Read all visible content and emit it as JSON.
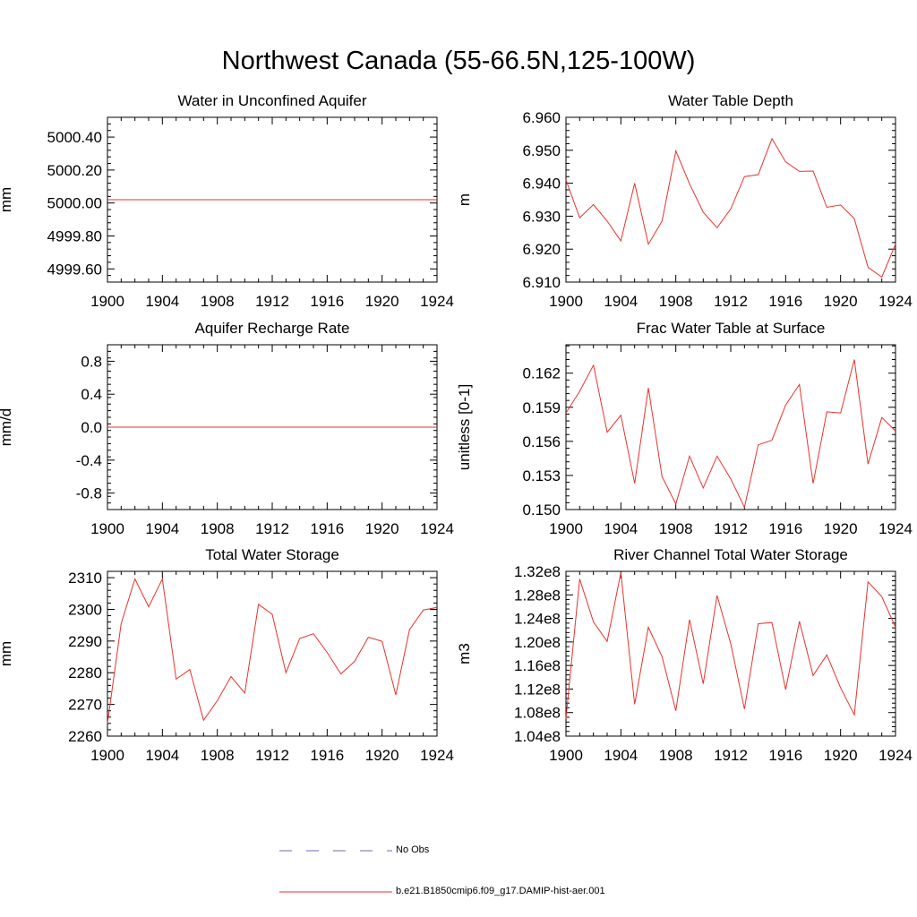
{
  "figure": {
    "title": "Northwest Canada (55-66.5N,125-100W)"
  },
  "legend": {
    "items": [
      {
        "label": "No Obs",
        "color": "#6b6bb8",
        "style": "dashed"
      },
      {
        "label": "b.e21.B1850cmip6.f09_g17.DAMIP-hist-aer.001",
        "color": "#e8322c",
        "style": "solid"
      }
    ]
  },
  "colors": {
    "series": "#e8322c",
    "axis": "#000000"
  },
  "chart_data": [
    {
      "type": "line",
      "title": "Water in Unconfined Aquifer",
      "ylabel": "mm",
      "xlim": [
        1900,
        1924
      ],
      "ylim": [
        4999.52,
        5000.52
      ],
      "xticks": [
        1900,
        1904,
        1908,
        1912,
        1916,
        1920,
        1924
      ],
      "xtick_labels": [
        "1900",
        "1904",
        "1908",
        "1912",
        "1916",
        "1920",
        "1924"
      ],
      "yticks": [
        4999.6,
        4999.8,
        5000.0,
        5000.2,
        5000.4
      ],
      "ytick_labels": [
        "4999.60",
        "4999.80",
        "5000.00",
        "5000.20",
        "5000.40"
      ],
      "x": [
        1900,
        1901,
        1902,
        1903,
        1904,
        1905,
        1906,
        1907,
        1908,
        1909,
        1910,
        1911,
        1912,
        1913,
        1914,
        1915,
        1916,
        1917,
        1918,
        1919,
        1920,
        1921,
        1922,
        1923,
        1924
      ],
      "series": [
        {
          "values": [
            5000.02,
            5000.02,
            5000.02,
            5000.02,
            5000.02,
            5000.02,
            5000.02,
            5000.02,
            5000.02,
            5000.02,
            5000.02,
            5000.02,
            5000.02,
            5000.02,
            5000.02,
            5000.02,
            5000.02,
            5000.02,
            5000.02,
            5000.02,
            5000.02,
            5000.02,
            5000.02,
            5000.02,
            5000.02
          ]
        }
      ]
    },
    {
      "type": "line",
      "title": "Water Table Depth",
      "ylabel": "m",
      "xlim": [
        1900,
        1924
      ],
      "ylim": [
        6.91,
        6.96
      ],
      "xticks": [
        1900,
        1904,
        1908,
        1912,
        1916,
        1920,
        1924
      ],
      "xtick_labels": [
        "1900",
        "1904",
        "1908",
        "1912",
        "1916",
        "1920",
        "1924"
      ],
      "yticks": [
        6.91,
        6.92,
        6.93,
        6.94,
        6.95,
        6.96
      ],
      "ytick_labels": [
        "6.910",
        "6.920",
        "6.930",
        "6.940",
        "6.950",
        "6.960"
      ],
      "x": [
        1900,
        1901,
        1902,
        1903,
        1904,
        1905,
        1906,
        1907,
        1908,
        1909,
        1910,
        1911,
        1912,
        1913,
        1914,
        1915,
        1916,
        1917,
        1918,
        1919,
        1920,
        1921,
        1922,
        1923,
        1924
      ],
      "series": [
        {
          "values": [
            6.941,
            6.9295,
            6.9335,
            6.9285,
            6.9225,
            6.94,
            6.9215,
            6.9285,
            6.9498,
            6.9398,
            6.9312,
            6.9265,
            6.9322,
            6.942,
            6.9426,
            6.9535,
            6.9465,
            6.9436,
            6.9437,
            6.9327,
            6.9334,
            6.9292,
            6.9145,
            6.9115,
            6.9215
          ]
        }
      ]
    },
    {
      "type": "line",
      "title": "Aquifer Recharge Rate",
      "ylabel": "mm/d",
      "xlim": [
        1900,
        1924
      ],
      "ylim": [
        -1.0,
        1.0
      ],
      "xticks": [
        1900,
        1904,
        1908,
        1912,
        1916,
        1920,
        1924
      ],
      "xtick_labels": [
        "1900",
        "1904",
        "1908",
        "1912",
        "1916",
        "1920",
        "1924"
      ],
      "yticks": [
        -0.8,
        -0.4,
        0.0,
        0.4,
        0.8
      ],
      "ytick_labels": [
        "-0.8",
        "-0.4",
        "0.0",
        "0.4",
        "0.8"
      ],
      "x": [
        1900,
        1901,
        1902,
        1903,
        1904,
        1905,
        1906,
        1907,
        1908,
        1909,
        1910,
        1911,
        1912,
        1913,
        1914,
        1915,
        1916,
        1917,
        1918,
        1919,
        1920,
        1921,
        1922,
        1923,
        1924
      ],
      "series": [
        {
          "values": [
            0,
            0,
            0,
            0,
            0,
            0,
            0,
            0,
            0,
            0,
            0,
            0,
            0,
            0,
            0,
            0,
            0,
            0,
            0,
            0,
            0,
            0,
            0,
            0,
            0
          ]
        }
      ]
    },
    {
      "type": "line",
      "title": "Frac Water Table at Surface",
      "ylabel": "unitless [0-1]",
      "xlim": [
        1900,
        1924
      ],
      "ylim": [
        0.15,
        0.1645
      ],
      "xticks": [
        1900,
        1904,
        1908,
        1912,
        1916,
        1920,
        1924
      ],
      "xtick_labels": [
        "1900",
        "1904",
        "1908",
        "1912",
        "1916",
        "1920",
        "1924"
      ],
      "yticks": [
        0.15,
        0.153,
        0.156,
        0.159,
        0.162
      ],
      "ytick_labels": [
        "0.150",
        "0.153",
        "0.156",
        "0.159",
        "0.162"
      ],
      "x": [
        1900,
        1901,
        1902,
        1903,
        1904,
        1905,
        1906,
        1907,
        1908,
        1909,
        1910,
        1911,
        1912,
        1913,
        1914,
        1915,
        1916,
        1917,
        1918,
        1919,
        1920,
        1921,
        1922,
        1923,
        1924
      ],
      "series": [
        {
          "values": [
            0.1585,
            0.1604,
            0.1627,
            0.1568,
            0.1583,
            0.1523,
            0.1607,
            0.1529,
            0.1505,
            0.1547,
            0.1519,
            0.1547,
            0.1527,
            0.1502,
            0.1557,
            0.1561,
            0.1592,
            0.161,
            0.1523,
            0.1586,
            0.1585,
            0.1632,
            0.154,
            0.1581,
            0.1569
          ]
        }
      ]
    },
    {
      "type": "line",
      "title": "Total Water Storage",
      "ylabel": "mm",
      "xlim": [
        1900,
        1924
      ],
      "ylim": [
        2260,
        2312
      ],
      "xticks": [
        1900,
        1904,
        1908,
        1912,
        1916,
        1920,
        1924
      ],
      "xtick_labels": [
        "1900",
        "1904",
        "1908",
        "1912",
        "1916",
        "1920",
        "1924"
      ],
      "yticks": [
        2260,
        2270,
        2280,
        2290,
        2300,
        2310
      ],
      "ytick_labels": [
        "2260",
        "2270",
        "2280",
        "2290",
        "2300",
        "2310"
      ],
      "x": [
        1900,
        1901,
        1902,
        1903,
        1904,
        1905,
        1906,
        1907,
        1908,
        1909,
        1910,
        1911,
        1912,
        1913,
        1914,
        1915,
        1916,
        1917,
        1918,
        1919,
        1920,
        1921,
        1922,
        1923,
        1924
      ],
      "series": [
        {
          "values": [
            2264,
            2295.5,
            2309.6,
            2300.8,
            2309.6,
            2278,
            2281,
            2265,
            2271.2,
            2278.8,
            2273.6,
            2301.6,
            2298.4,
            2280,
            2290.8,
            2292.3,
            2286.4,
            2279.6,
            2283.6,
            2291.2,
            2289.9,
            2273,
            2293.6,
            2299.8,
            2300.6
          ]
        }
      ]
    },
    {
      "type": "line",
      "title": "River Channel Total Water Storage",
      "ylabel": "m3",
      "xlim": [
        1900,
        1924
      ],
      "ylim": [
        104000000.0,
        132000000.0
      ],
      "xticks": [
        1900,
        1904,
        1908,
        1912,
        1916,
        1920,
        1924
      ],
      "xtick_labels": [
        "1900",
        "1904",
        "1908",
        "1912",
        "1916",
        "1920",
        "1924"
      ],
      "yticks": [
        104000000.0,
        108000000.0,
        112000000.0,
        116000000.0,
        120000000.0,
        124000000.0,
        128000000.0,
        132000000.0
      ],
      "ytick_labels": [
        "1.04e8",
        "1.08e8",
        "1.12e8",
        "1.16e8",
        "1.20e8",
        "1.24e8",
        "1.28e8",
        "1.32e8"
      ],
      "x": [
        1900,
        1901,
        1902,
        1903,
        1904,
        1905,
        1906,
        1907,
        1908,
        1909,
        1910,
        1911,
        1912,
        1913,
        1914,
        1915,
        1916,
        1917,
        1918,
        1919,
        1920,
        1921,
        1922,
        1923,
        1924
      ],
      "series": [
        {
          "values": [
            107000000.0,
            130700000.0,
            123400000.0,
            120100000.0,
            131800000.0,
            109400000.0,
            122500000.0,
            117500000.0,
            108300000.0,
            123800000.0,
            112900000.0,
            127900000.0,
            119700000.0,
            108600000.0,
            123100000.0,
            123300000.0,
            111900000.0,
            123500000.0,
            114300000.0,
            117800000.0,
            112200000.0,
            107600000.0,
            130200000.0,
            127700000.0,
            122500000.0
          ]
        }
      ]
    }
  ]
}
